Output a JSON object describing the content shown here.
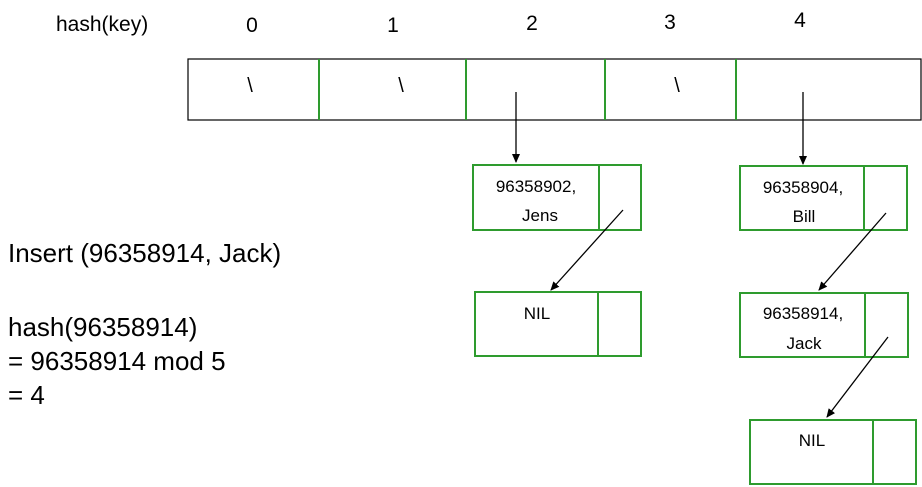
{
  "header": {
    "hash_label": "hash(key)",
    "indices": [
      "0",
      "1",
      "2",
      "3",
      "4"
    ]
  },
  "table": {
    "slots": [
      {
        "content": "\\"
      },
      {
        "content": "\\"
      },
      {
        "content": ""
      },
      {
        "content": "\\"
      },
      {
        "content": ""
      }
    ]
  },
  "chains": {
    "slot2": [
      {
        "line1": "96358902,",
        "line2": "Jens"
      },
      {
        "line1": "NIL",
        "line2": ""
      }
    ],
    "slot4": [
      {
        "line1": "96358904,",
        "line2": "Bill"
      },
      {
        "line1": "96358914,",
        "line2": "Jack"
      },
      {
        "line1": "NIL",
        "line2": ""
      }
    ]
  },
  "explanation": {
    "insert": "Insert (96358914, Jack)",
    "hash_call": "hash(96358914)",
    "mod_line": "= 96358914 mod 5",
    "result": "= 4"
  },
  "colors": {
    "node_border": "#2e9b2e",
    "table_border": "#000000",
    "divider": "#2e9b2e"
  }
}
